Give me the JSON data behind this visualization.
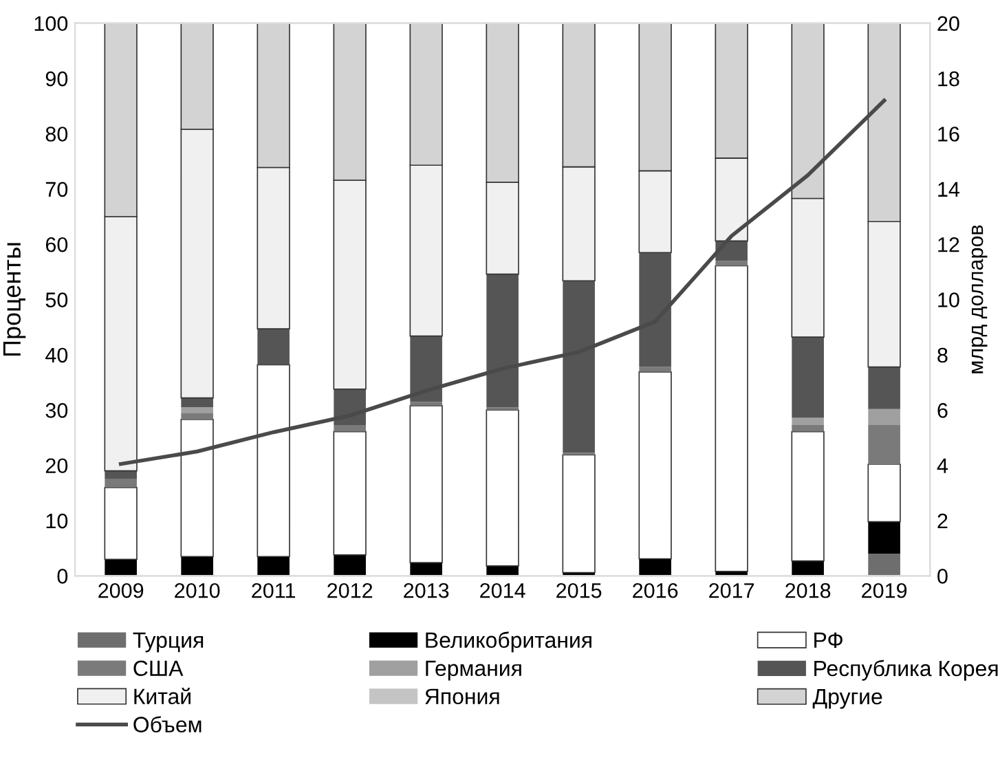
{
  "chart_data": {
    "type": "bar",
    "stacked": true,
    "categories": [
      "2009",
      "2010",
      "2011",
      "2012",
      "2013",
      "2014",
      "2015",
      "2016",
      "2017",
      "2018",
      "2019"
    ],
    "ylabel": "Проценты",
    "y2label": "млрд долларов",
    "ylim": [
      0,
      100
    ],
    "yticks": [
      0,
      10,
      20,
      30,
      40,
      50,
      60,
      70,
      80,
      90,
      100
    ],
    "y2lim": [
      0,
      20
    ],
    "y2ticks": [
      0,
      2,
      4,
      6,
      8,
      10,
      12,
      14,
      16,
      18,
      20
    ],
    "legend": "bottom",
    "grid": false,
    "series": [
      {
        "name": "Турция",
        "color": "#6e6e6e",
        "values": [
          null,
          null,
          null,
          null,
          null,
          null,
          null,
          null,
          null,
          null,
          4
        ]
      },
      {
        "name": "Великобритания",
        "color": "#000000",
        "values": [
          3,
          3.5,
          3.5,
          3.8,
          2.4,
          1.8,
          0.6,
          3.1,
          0.8,
          2.7,
          5.8
        ]
      },
      {
        "name": "РФ",
        "color": "#ffffff",
        "values": [
          13,
          24.8,
          34.7,
          22.3,
          28.4,
          28.2,
          21.3,
          33.8,
          55.3,
          23.4,
          10.4
        ]
      },
      {
        "name": "США",
        "color": "#7a7a7a",
        "values": [
          1.5,
          1.2,
          null,
          1.2,
          0.7,
          0.5,
          0.4,
          0.9,
          0.9,
          1.2,
          7.1
        ]
      },
      {
        "name": "Германия",
        "color": "#a0a0a0",
        "values": [
          null,
          1,
          null,
          null,
          null,
          null,
          null,
          null,
          null,
          1.3,
          2.9
        ]
      },
      {
        "name": "Республика Корея",
        "color": "#555555",
        "values": [
          1.5,
          1.7,
          6.5,
          6.5,
          11.9,
          24.1,
          31.1,
          20.7,
          3.6,
          14.6,
          7.6
        ]
      },
      {
        "name": "Китай",
        "color": "#f0f0f0",
        "values": [
          46,
          48.6,
          29.2,
          37.8,
          30.9,
          16.6,
          20.6,
          14.8,
          15,
          25.1,
          26.3
        ]
      },
      {
        "name": "Япония",
        "color": "#c4c4c4",
        "values": [
          null,
          null,
          null,
          null,
          null,
          null,
          null,
          null,
          null,
          null,
          null
        ]
      },
      {
        "name": "Другие",
        "color": "#d3d3d3",
        "values": [
          35,
          19.2,
          26.1,
          28.4,
          25.7,
          28.8,
          26,
          26.7,
          24.4,
          31.7,
          35.9
        ]
      },
      {
        "name": "Объем",
        "type": "line",
        "axis": "y2",
        "color": "#4a4a4a",
        "values": [
          4.05,
          4.5,
          5.2,
          5.8,
          6.7,
          7.5,
          8.1,
          9.2,
          12.3,
          14.5,
          17.2
        ]
      }
    ]
  }
}
